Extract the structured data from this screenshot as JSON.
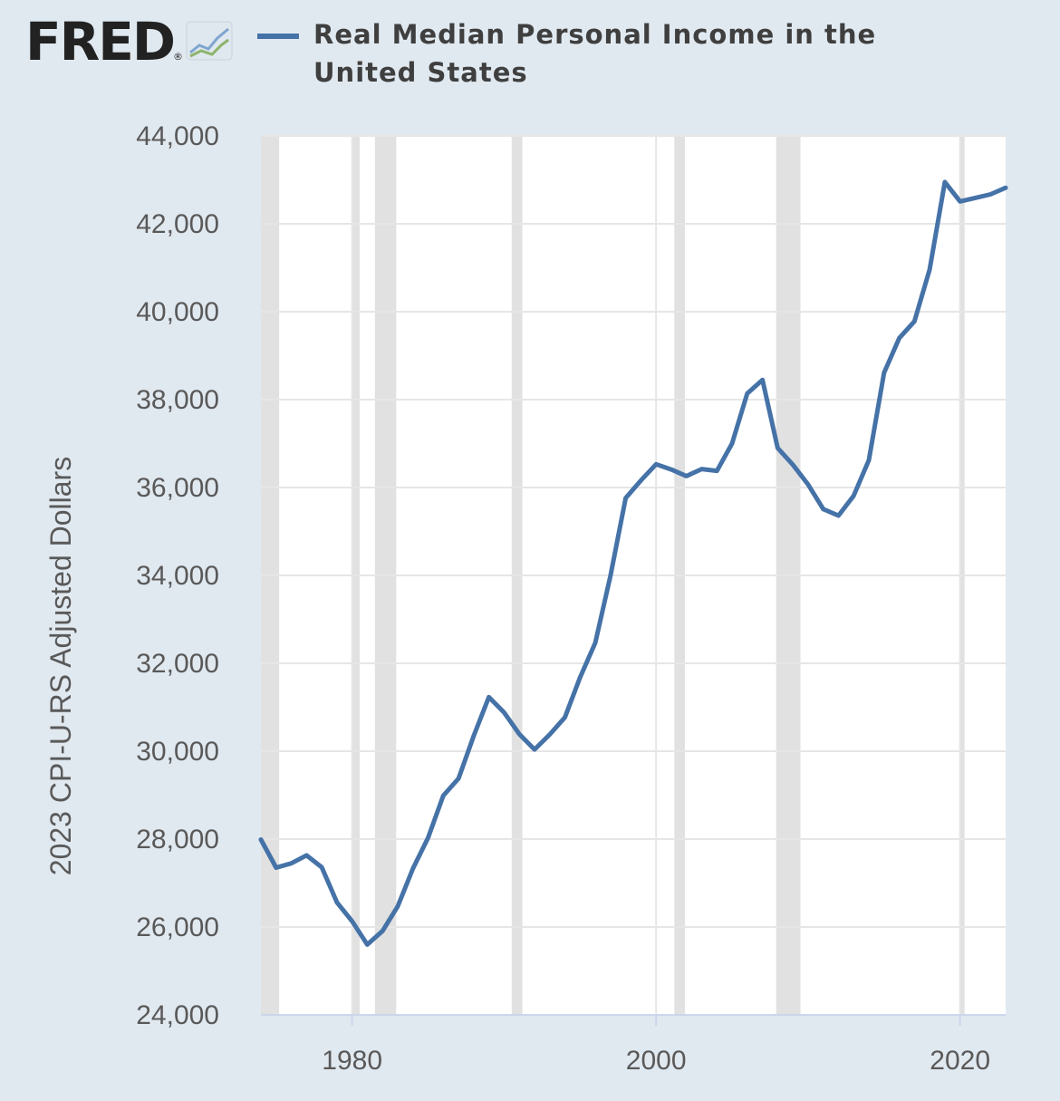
{
  "brand": {
    "logo_text": "FRED",
    "registered_mark": "®"
  },
  "colors": {
    "background": "#e1e9f0",
    "plot_background": "#ffffff",
    "gridline": "#e6e6e6",
    "recession": "#e1e1e1",
    "series": "#4572a7"
  },
  "chart_data": {
    "type": "line",
    "title": "",
    "ylabel": "2023 CPI-U-RS Adjusted Dollars",
    "xlabel": "",
    "ylim": [
      24000,
      44000
    ],
    "xlim": [
      1974,
      2023
    ],
    "y_ticks": [
      24000,
      26000,
      28000,
      30000,
      32000,
      34000,
      36000,
      38000,
      40000,
      42000,
      44000
    ],
    "y_tick_labels": [
      "24,000",
      "26,000",
      "28,000",
      "30,000",
      "32,000",
      "34,000",
      "36,000",
      "38,000",
      "40,000",
      "42,000",
      "44,000"
    ],
    "x_ticks": [
      1980,
      2000,
      2020
    ],
    "x_tick_labels": [
      "1980",
      "2000",
      "2020"
    ],
    "grid": true,
    "recessions": [
      [
        1973.9,
        1975.2
      ],
      [
        1980.0,
        1980.5
      ],
      [
        1981.5,
        1982.9
      ],
      [
        1990.5,
        1991.2
      ],
      [
        2001.2,
        2001.9
      ],
      [
        2007.9,
        2009.5
      ],
      [
        2020.0,
        2020.3
      ]
    ],
    "series": [
      {
        "name": "Real Median Personal Income in the United States",
        "x": [
          1974,
          1975,
          1976,
          1977,
          1978,
          1979,
          1980,
          1981,
          1982,
          1983,
          1984,
          1985,
          1986,
          1987,
          1988,
          1989,
          1990,
          1991,
          1992,
          1993,
          1994,
          1995,
          1996,
          1997,
          1998,
          1999,
          2000,
          2001,
          2002,
          2003,
          2004,
          2005,
          2006,
          2007,
          2008,
          2009,
          2010,
          2011,
          2012,
          2013,
          2014,
          2015,
          2016,
          2017,
          2018,
          2019,
          2020,
          2021,
          2022,
          2023
        ],
        "y": [
          27990,
          27350,
          27450,
          27630,
          27360,
          26560,
          26130,
          25600,
          25910,
          26470,
          27330,
          28030,
          28990,
          29380,
          30350,
          31230,
          30880,
          30390,
          30040,
          30380,
          30770,
          31680,
          32470,
          33990,
          35760,
          36160,
          36530,
          36410,
          36260,
          36420,
          36380,
          37000,
          38140,
          38450,
          36900,
          36520,
          36070,
          35510,
          35360,
          35810,
          36620,
          38610,
          39400,
          39780,
          40960,
          42950,
          42510,
          42590,
          42670,
          42820
        ]
      }
    ]
  }
}
